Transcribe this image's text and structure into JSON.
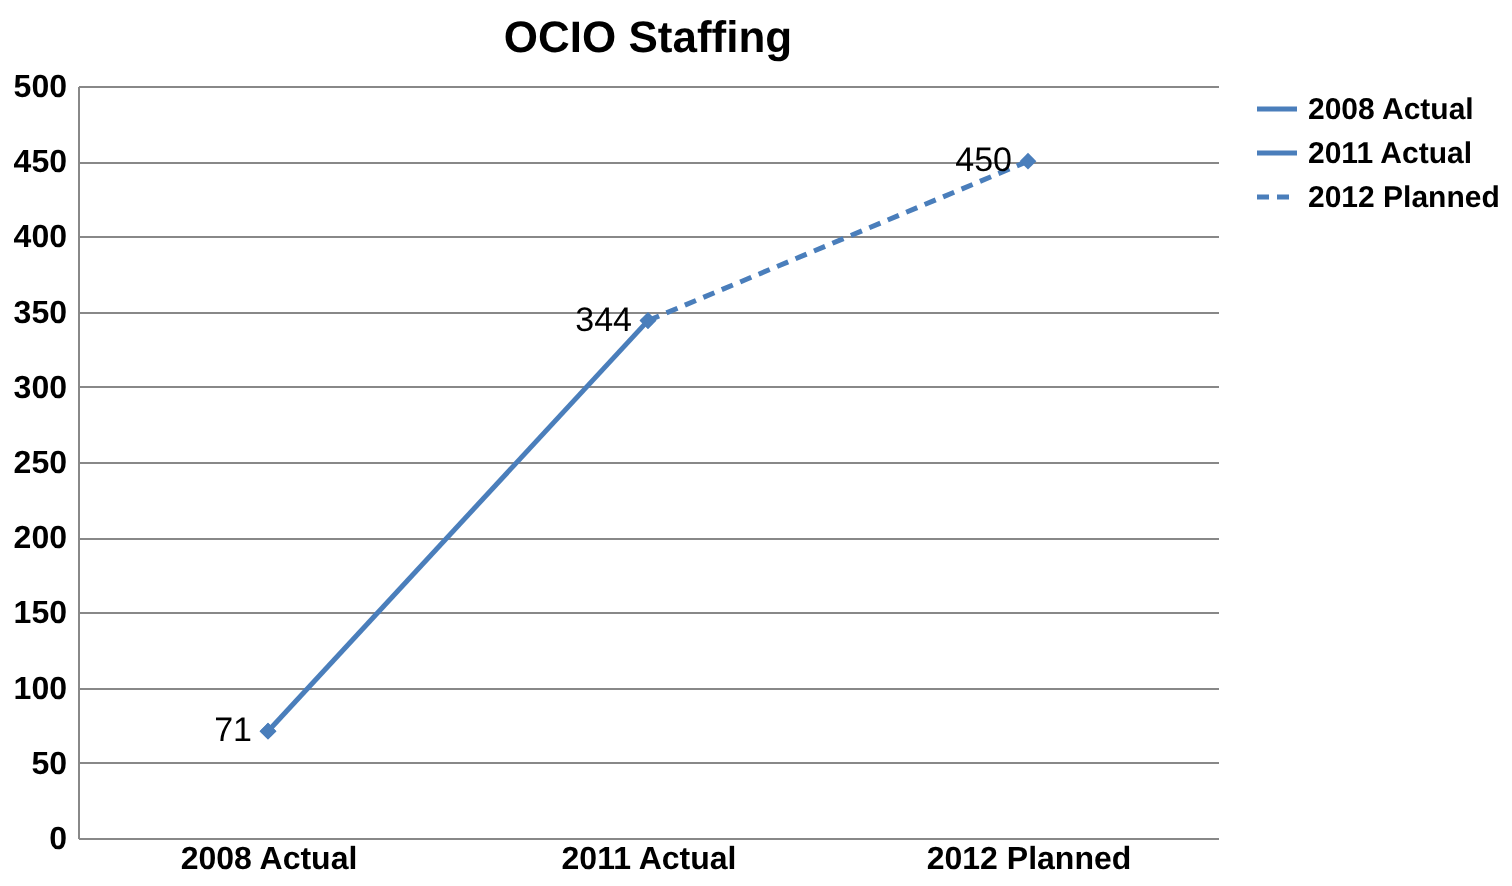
{
  "chart_data": {
    "type": "line",
    "title": "OCIO Staffing",
    "categories": [
      "2008  Actual",
      "2011 Actual",
      "2012 Planned"
    ],
    "series": [
      {
        "name": "2008  Actual",
        "color": "#4a7ebb",
        "values": [
          71,
          null,
          null
        ],
        "value_labels": [
          "71",
          null,
          null
        ]
      },
      {
        "name": "2011 Actual",
        "color": "#4a7ebb",
        "values": [
          71,
          344,
          null
        ],
        "value_labels": [
          null,
          "344",
          null
        ]
      },
      {
        "name": "2012 Planned",
        "color": "#4a7ebb",
        "values": [
          null,
          344,
          450
        ],
        "value_labels": [
          null,
          null,
          "450"
        ],
        "line_style": "dashed"
      }
    ],
    "ylim": [
      0,
      500
    ],
    "yticks": [
      0,
      50,
      100,
      150,
      200,
      250,
      300,
      350,
      400,
      450,
      500
    ],
    "grid": "y",
    "legend": "right",
    "marker": "diamond",
    "line_style": "solid"
  }
}
